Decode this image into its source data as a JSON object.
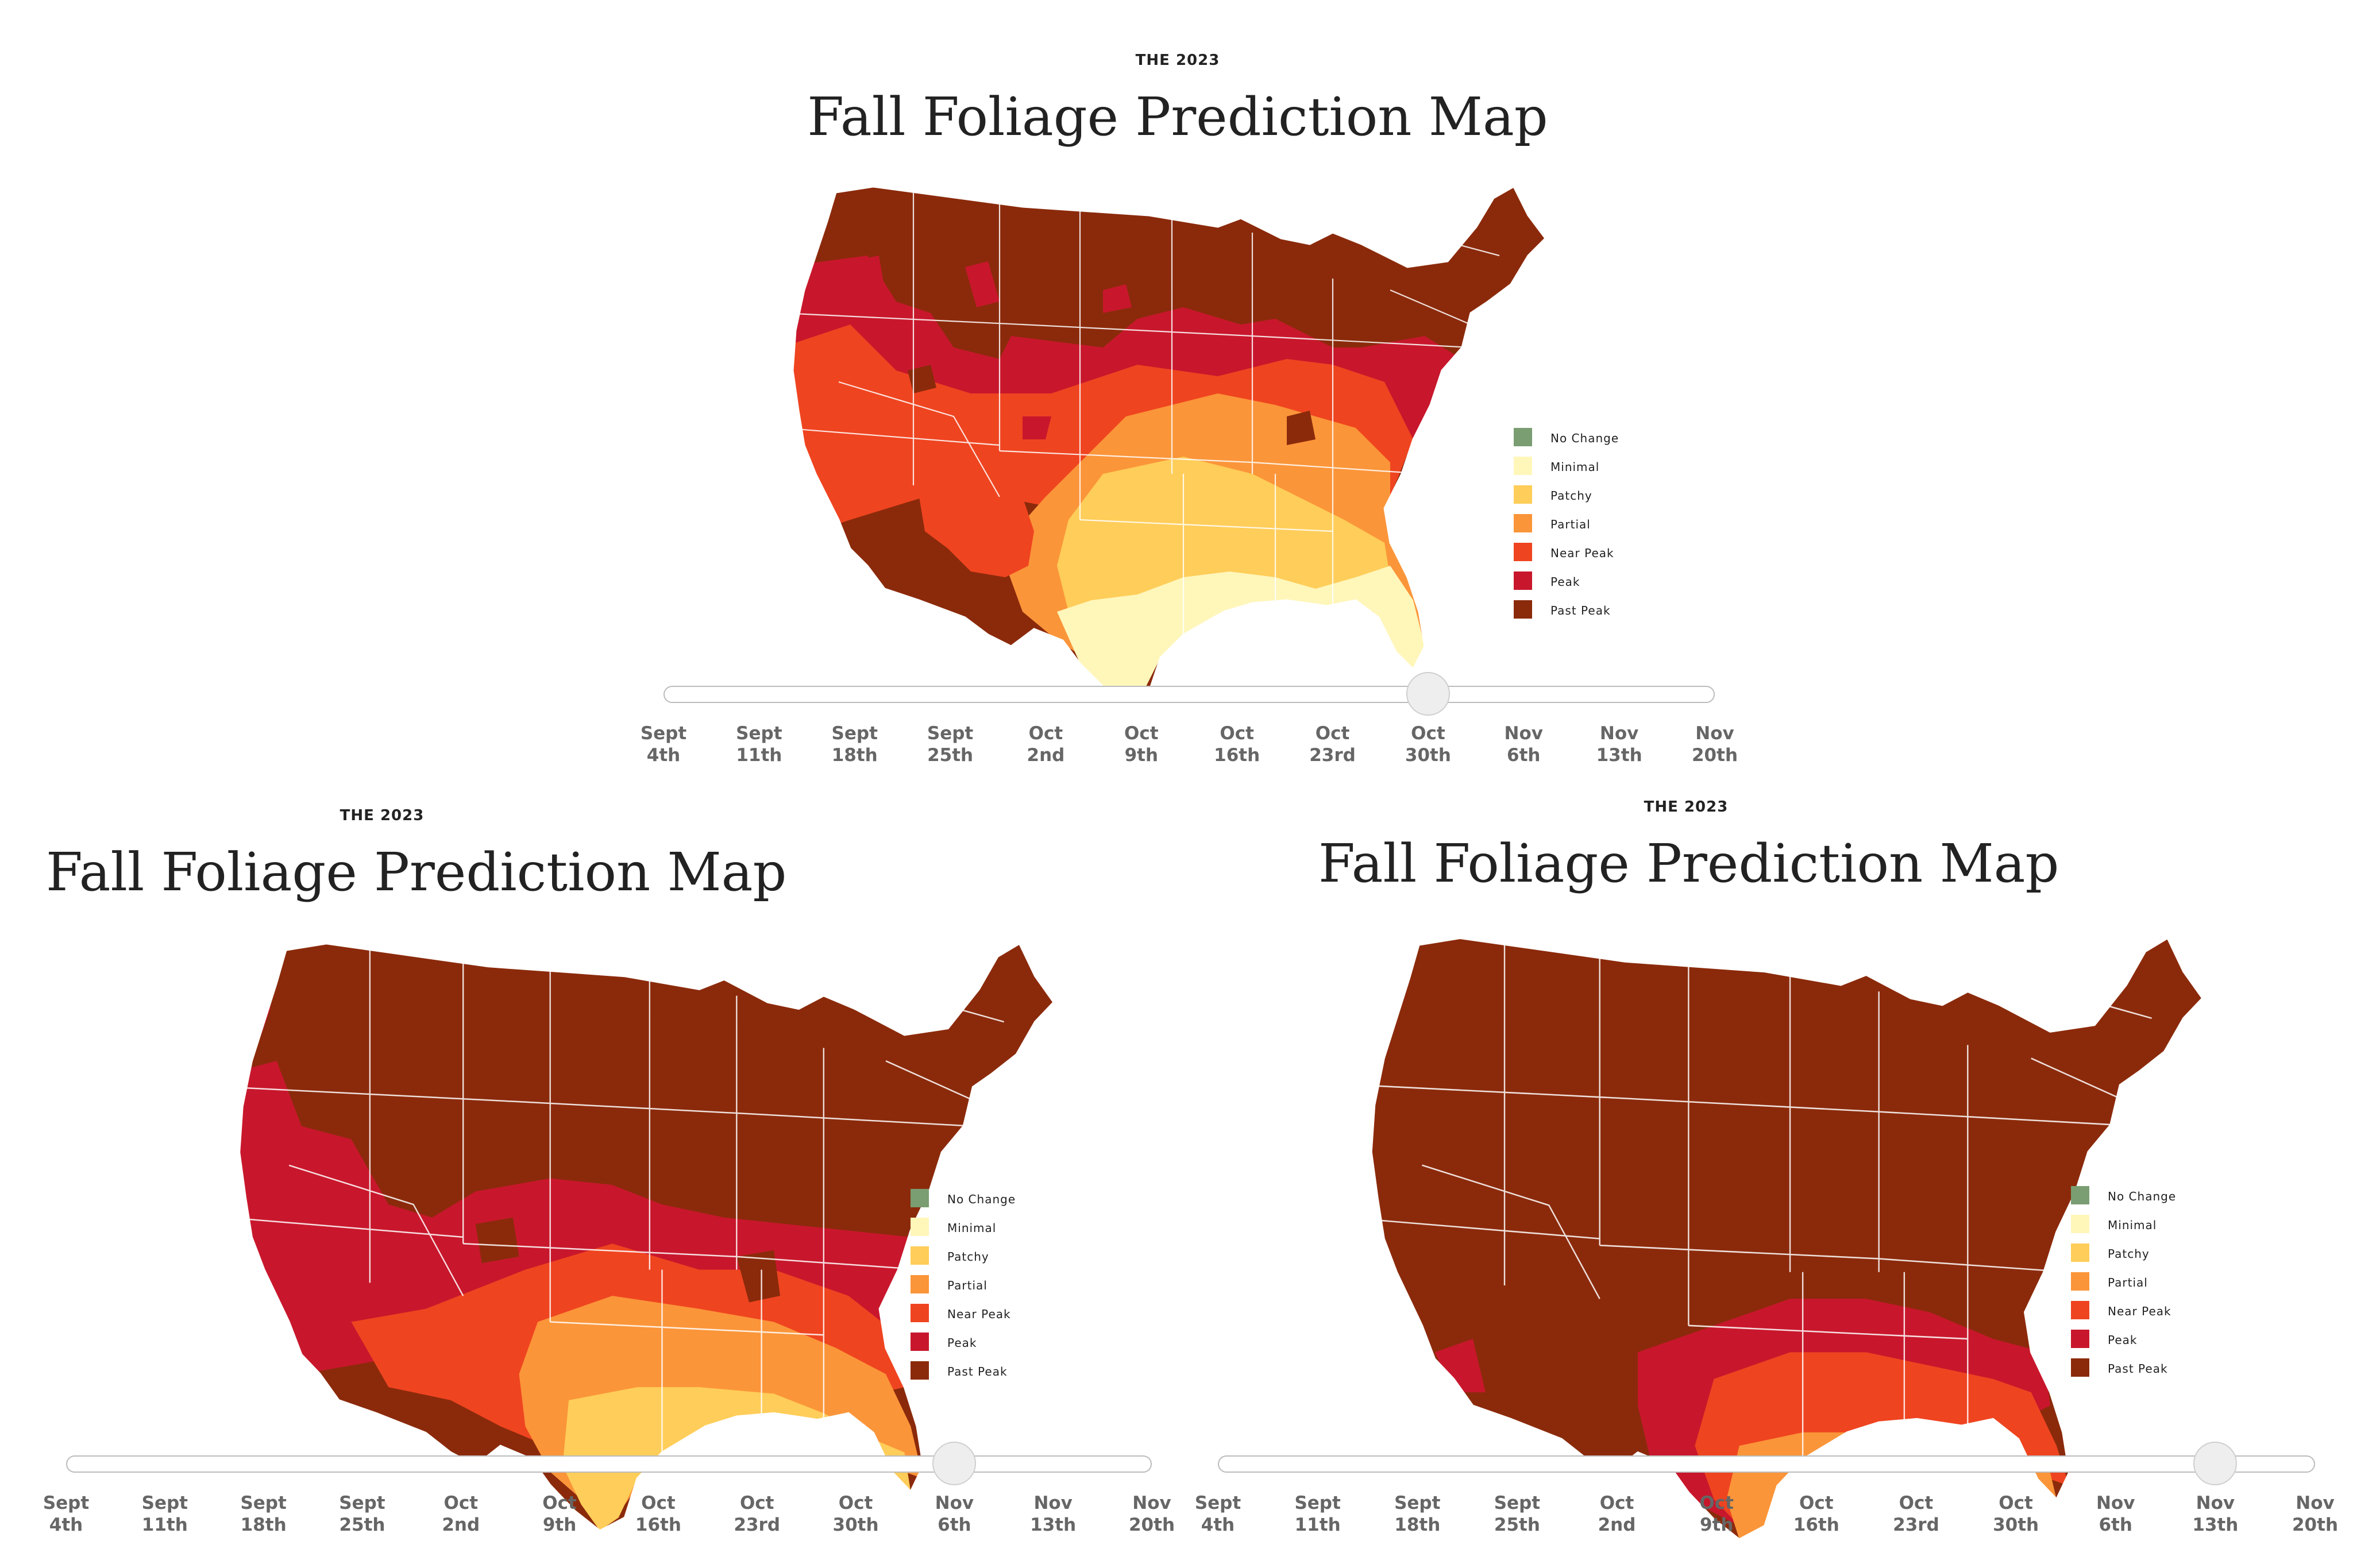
{
  "panels": [
    {
      "kicker": "THE 2023",
      "title": "Fall Foliage Prediction Map",
      "slider_selected_date": "Oct 30th",
      "slider_position_index": 8
    },
    {
      "kicker": "THE 2023",
      "title": "Fall Foliage Prediction Map",
      "slider_selected_date": "Nov 6th",
      "slider_position_index": 9
    },
    {
      "kicker": "THE 2023",
      "title": "Fall Foliage Prediction Map",
      "slider_selected_date": "Nov 13th",
      "slider_position_index": 10
    }
  ],
  "legend": [
    {
      "label": "No Change",
      "color": "#7a9e72"
    },
    {
      "label": "Minimal",
      "color": "#fff6ba"
    },
    {
      "label": "Patchy",
      "color": "#ffcd59"
    },
    {
      "label": "Partial",
      "color": "#fb9539"
    },
    {
      "label": "Near Peak",
      "color": "#ef4420"
    },
    {
      "label": "Peak",
      "color": "#c8172c"
    },
    {
      "label": "Past Peak",
      "color": "#8b2a0b"
    }
  ],
  "slider_dates": [
    {
      "month": "Sept",
      "day": "4th"
    },
    {
      "month": "Sept",
      "day": "11th"
    },
    {
      "month": "Sept",
      "day": "18th"
    },
    {
      "month": "Sept",
      "day": "25th"
    },
    {
      "month": "Oct",
      "day": "2nd"
    },
    {
      "month": "Oct",
      "day": "9th"
    },
    {
      "month": "Oct",
      "day": "16th"
    },
    {
      "month": "Oct",
      "day": "23rd"
    },
    {
      "month": "Oct",
      "day": "30th"
    },
    {
      "month": "Nov",
      "day": "6th"
    },
    {
      "month": "Nov",
      "day": "13th"
    },
    {
      "month": "Nov",
      "day": "20th"
    }
  ]
}
